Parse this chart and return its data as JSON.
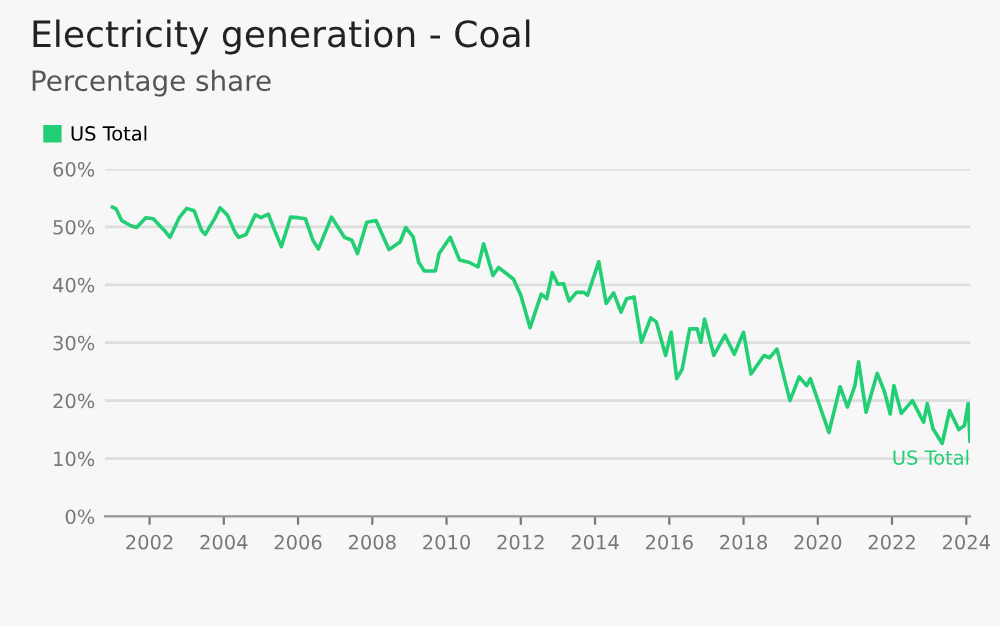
{
  "chart_data": {
    "type": "line",
    "title": "Electricity generation - Coal",
    "subtitle": "Percentage share",
    "series": [
      {
        "name": "US Total",
        "color": "#22cf74",
        "x": [
          2001.0,
          2001.1,
          2001.25,
          2001.5,
          2001.65,
          2001.9,
          2002.1,
          2002.4,
          2002.55,
          2002.8,
          2003.0,
          2003.2,
          2003.4,
          2003.5,
          2003.75,
          2003.9,
          2004.1,
          2004.3,
          2004.4,
          2004.6,
          2004.85,
          2005.0,
          2005.2,
          2005.35,
          2005.55,
          2005.8,
          2006.0,
          2006.2,
          2006.4,
          2006.55,
          2006.9,
          2007.05,
          2007.25,
          2007.45,
          2007.6,
          2007.85,
          2008.1,
          2008.3,
          2008.45,
          2008.75,
          2008.9,
          2009.1,
          2009.25,
          2009.4,
          2009.7,
          2009.8,
          2010.1,
          2010.35,
          2010.6,
          2010.85,
          2011.0,
          2011.25,
          2011.4,
          2011.8,
          2012.0,
          2012.25,
          2012.55,
          2012.7,
          2012.85,
          2013.0,
          2013.15,
          2013.3,
          2013.5,
          2013.7,
          2013.8,
          2014.1,
          2014.3,
          2014.5,
          2014.7,
          2014.85,
          2015.05,
          2015.25,
          2015.5,
          2015.65,
          2015.9,
          2016.05,
          2016.2,
          2016.35,
          2016.55,
          2016.75,
          2016.85,
          2016.95,
          2017.2,
          2017.5,
          2017.75,
          2018.0,
          2018.2,
          2018.55,
          2018.7,
          2018.9,
          2019.25,
          2019.5,
          2019.7,
          2019.8,
          2020.3,
          2020.6,
          2020.8,
          2021.0,
          2021.1,
          2021.3,
          2021.6,
          2021.8,
          2021.95,
          2022.05,
          2022.25,
          2022.55,
          2022.85,
          2022.95,
          2023.1,
          2023.35,
          2023.55,
          2023.8,
          2023.95,
          2024.05,
          2024.1
        ],
        "values": [
          53.4,
          53.1,
          51.1,
          50.2,
          49.9,
          51.6,
          51.4,
          49.4,
          48.2,
          51.6,
          53.2,
          52.8,
          49.4,
          48.7,
          51.4,
          53.3,
          52.0,
          49.1,
          48.2,
          48.7,
          52.1,
          51.6,
          52.2,
          49.7,
          46.6,
          51.7,
          51.6,
          51.4,
          47.7,
          46.2,
          51.7,
          50.2,
          48.2,
          47.7,
          45.4,
          50.8,
          51.1,
          48.2,
          46.1,
          47.4,
          49.9,
          48.3,
          43.9,
          42.4,
          42.4,
          45.4,
          48.2,
          44.3,
          43.9,
          43.1,
          47.1,
          41.6,
          43.0,
          41.0,
          38.2,
          32.6,
          38.4,
          37.6,
          42.1,
          40.1,
          40.2,
          37.2,
          38.7,
          38.7,
          38.2,
          44.0,
          36.8,
          38.6,
          35.3,
          37.6,
          37.9,
          30.1,
          34.3,
          33.6,
          27.8,
          31.8,
          23.8,
          25.5,
          32.4,
          32.4,
          30.1,
          34.1,
          27.8,
          31.3,
          28.0,
          31.8,
          24.6,
          27.8,
          27.4,
          28.9,
          20.0,
          24.1,
          22.6,
          23.8,
          14.5,
          22.4,
          18.9,
          22.6,
          26.7,
          18.0,
          24.7,
          21.5,
          17.7,
          22.6,
          17.8,
          20.0,
          16.3,
          19.5,
          15.2,
          12.6,
          18.3,
          15.0,
          15.7,
          19.5,
          13.0
        ]
      }
    ],
    "xlim": [
      2000.8,
      2024.1
    ],
    "xticks": [
      2002,
      2004,
      2006,
      2008,
      2010,
      2012,
      2014,
      2016,
      2018,
      2020,
      2022,
      2024
    ],
    "ylim": [
      0,
      60
    ],
    "yticks": [
      {
        "value": 0,
        "label": "0%"
      },
      {
        "value": 10,
        "label": "10%"
      },
      {
        "value": 20,
        "label": "20%"
      },
      {
        "value": 30,
        "label": "30%"
      },
      {
        "value": 40,
        "label": "40%"
      },
      {
        "value": 50,
        "label": "50%"
      },
      {
        "value": 60,
        "label": "60%"
      }
    ],
    "grid": "y",
    "legend": "top left",
    "line_style": "solid"
  }
}
